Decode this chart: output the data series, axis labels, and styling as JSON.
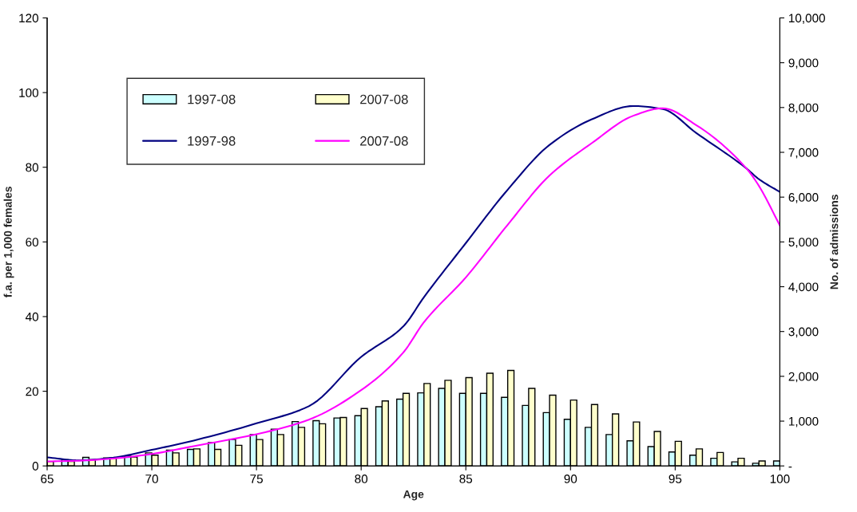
{
  "chart_data": {
    "type": "bar",
    "xlabel": "Age",
    "ylabel": "f.a. per 1,000 females",
    "y2label": "No. of admissions",
    "x": [
      65,
      66,
      67,
      68,
      69,
      70,
      71,
      72,
      73,
      74,
      75,
      76,
      77,
      78,
      79,
      80,
      81,
      82,
      83,
      84,
      85,
      86,
      87,
      88,
      89,
      90,
      91,
      92,
      93,
      94,
      95,
      96,
      97,
      98,
      99,
      100
    ],
    "series": [
      {
        "name": "1997-08",
        "axis": "y2",
        "color": "#ccffff",
        "values": [
          null,
          140,
          190,
          180,
          220,
          290,
          350,
          370,
          520,
          590,
          700,
          820,
          990,
          1010,
          1070,
          1120,
          1320,
          1490,
          1630,
          1730,
          1620,
          1620,
          1530,
          1350,
          1190,
          1040,
          860,
          700,
          560,
          430,
          310,
          240,
          170,
          90,
          60,
          110
        ]
      },
      {
        "name": "2007-08",
        "axis": "y2",
        "color": "#ffffcc",
        "values": [
          100,
          100,
          140,
          180,
          200,
          240,
          290,
          380,
          370,
          460,
          590,
          700,
          860,
          940,
          1080,
          1280,
          1450,
          1620,
          1840,
          1910,
          1970,
          2070,
          2130,
          1730,
          1580,
          1470,
          1370,
          1160,
          980,
          770,
          550,
          380,
          300,
          170,
          110,
          null
        ]
      },
      {
        "name": "1997-98",
        "type": "line",
        "color": "#000080",
        "x": [
          65,
          66.5,
          68,
          70,
          72,
          75,
          77.5,
          80,
          82,
          83,
          85,
          87,
          89,
          91,
          93,
          94.4,
          96,
          98.4,
          99,
          100
        ],
        "values": [
          2.3,
          1.5,
          2.1,
          4.3,
          6.8,
          11.4,
          16,
          29.2,
          37.3,
          45.2,
          59.7,
          74,
          86,
          92.8,
          96.4,
          95.6,
          89.2,
          79.7,
          76.8,
          73.4
        ]
      },
      {
        "name": "2007-08",
        "type": "line",
        "color": "#ff00ff",
        "x": [
          65,
          66.5,
          68,
          70,
          72,
          75,
          77.5,
          80,
          82,
          83,
          85,
          87,
          89,
          91,
          93,
          94.4,
          96,
          98.4,
          99,
          100
        ],
        "values": [
          1.2,
          1.4,
          1.9,
          3.2,
          5.3,
          8.5,
          12.4,
          20.3,
          30.3,
          38.5,
          50.5,
          64.6,
          77.8,
          86.4,
          93.8,
          95.8,
          91.3,
          79.7,
          75,
          64.4
        ]
      }
    ],
    "xlim": [
      65,
      100
    ],
    "xticks": [
      65,
      70,
      75,
      80,
      85,
      90,
      95,
      100
    ],
    "ylim": [
      0,
      120
    ],
    "yticks": [
      0,
      20,
      40,
      60,
      80,
      100,
      120
    ],
    "y2lim": [
      0,
      10000
    ],
    "y2ticks": [
      {
        "value": 0,
        "label": "-"
      },
      {
        "value": 1000,
        "label": "1,000"
      },
      {
        "value": 2000,
        "label": "2,000"
      },
      {
        "value": 3000,
        "label": "3,000"
      },
      {
        "value": 4000,
        "label": "4,000"
      },
      {
        "value": 5000,
        "label": "5,000"
      },
      {
        "value": 6000,
        "label": "6,000"
      },
      {
        "value": 7000,
        "label": "7,000"
      },
      {
        "value": 8000,
        "label": "8,000"
      },
      {
        "value": 9000,
        "label": "9,000"
      },
      {
        "value": 10000,
        "label": "10,000"
      }
    ],
    "legend": "top left",
    "grid": false
  }
}
